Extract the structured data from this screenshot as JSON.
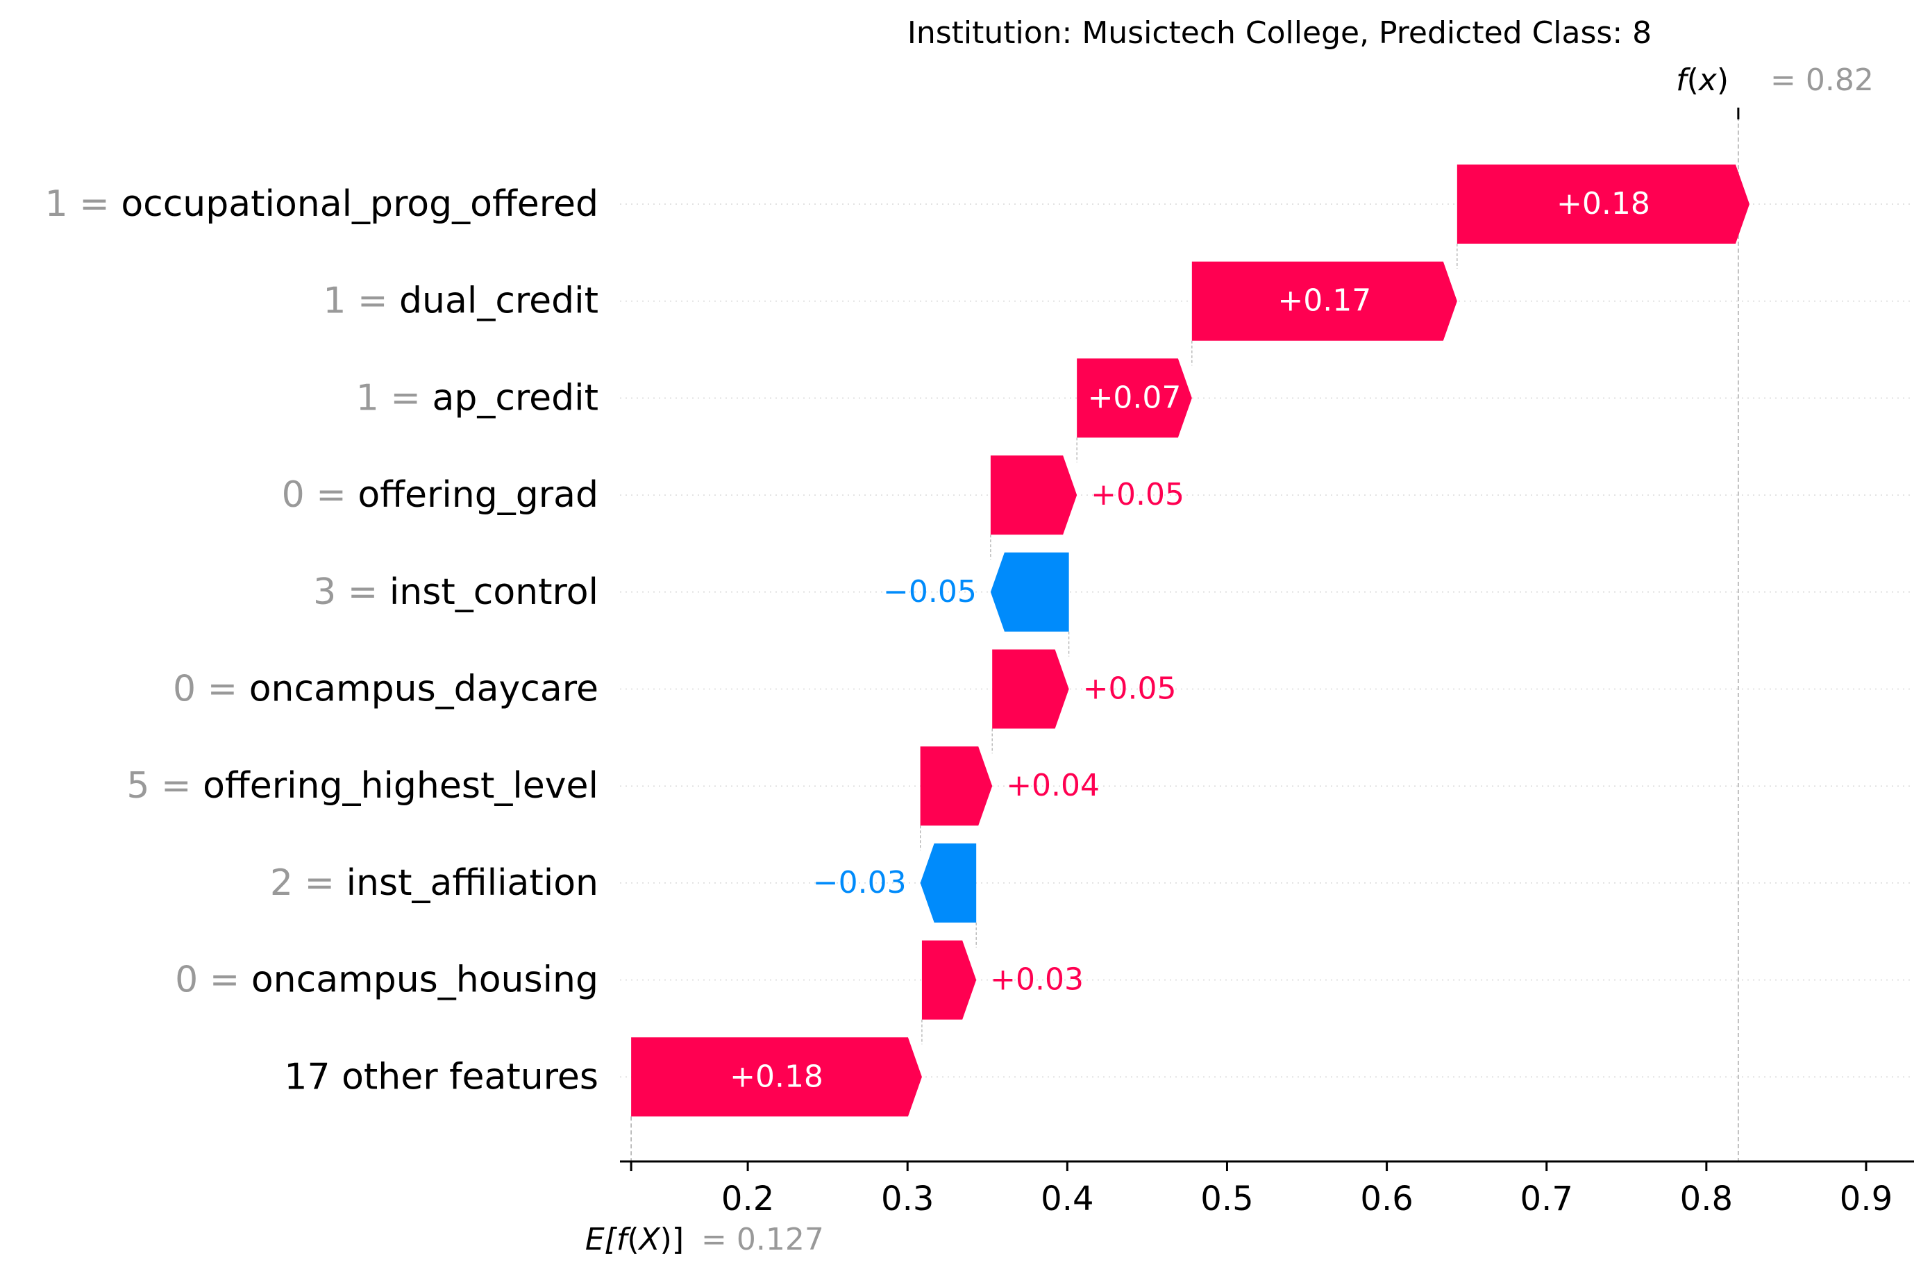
{
  "chart_data": {
    "type": "waterfall",
    "title": "Institution: Musictech College, Predicted Class: 8",
    "fx_label_prefix": "f",
    "fx_label_var": "x",
    "fx_value": 0.82,
    "fx_value_text": "= 0.82",
    "ex_label_prefix": "E[",
    "ex_label_f": "f",
    "ex_label_var": "X",
    "ex_label_suffix": ")]",
    "ex_value": 0.127,
    "ex_value_text": "= 0.127",
    "xlim": [
      0.12,
      0.93
    ],
    "xticks": [
      "0.2",
      "0.3",
      "0.4",
      "0.5",
      "0.6",
      "0.7",
      "0.8",
      "0.9"
    ],
    "features": [
      {
        "value": "1 =",
        "name": "occupational_prog_offered",
        "contribution": 0.183,
        "label": "+0.18"
      },
      {
        "value": "1 =",
        "name": "dual_credit",
        "contribution": 0.166,
        "label": "+0.17"
      },
      {
        "value": "1 =",
        "name": "ap_credit",
        "contribution": 0.072,
        "label": "+0.07"
      },
      {
        "value": "0 =",
        "name": "offering_grad",
        "contribution": 0.054,
        "label": "+0.05"
      },
      {
        "value": "3 =",
        "name": "inst_control",
        "contribution": -0.049,
        "label": "−0.05"
      },
      {
        "value": "0 =",
        "name": "oncampus_daycare",
        "contribution": 0.048,
        "label": "+0.05"
      },
      {
        "value": "5 =",
        "name": "offering_highest_level",
        "contribution": 0.045,
        "label": "+0.04"
      },
      {
        "value": "2 =",
        "name": "inst_affiliation",
        "contribution": -0.035,
        "label": "−0.03"
      },
      {
        "value": "0 =",
        "name": "oncampus_housing",
        "contribution": 0.034,
        "label": "+0.03"
      },
      {
        "value": "",
        "name": "17 other features",
        "contribution": 0.182,
        "label": "+0.18"
      }
    ],
    "colors": {
      "positive": "#ff0051",
      "negative": "#008bfb",
      "value_gray": "#999999",
      "text": "#000000"
    }
  }
}
